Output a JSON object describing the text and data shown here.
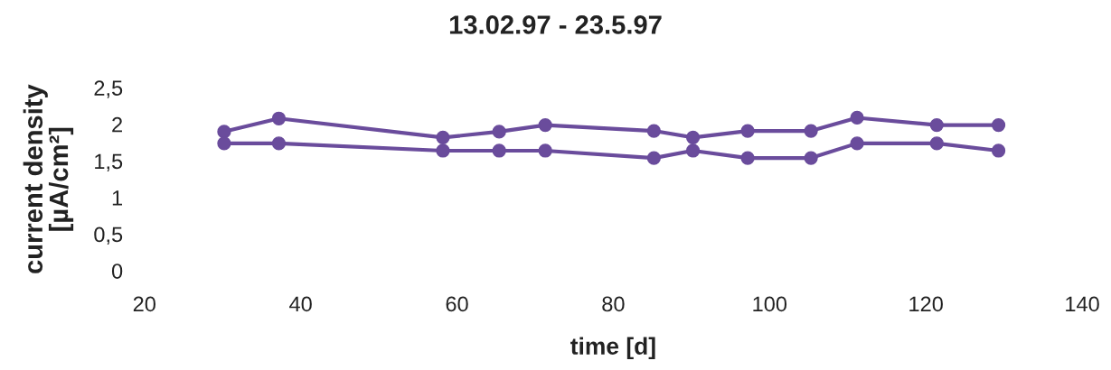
{
  "chart_data": {
    "type": "line",
    "title": "13.02.97 - 23.5.97",
    "xlabel": "time [d]",
    "ylabel": "current density\n[µA/cm²]",
    "x": [
      30.2,
      37.2,
      58.2,
      65.4,
      71.3,
      85.2,
      90.2,
      97.2,
      105.3,
      111.2,
      121.4,
      129.3
    ],
    "series": [
      {
        "color": "#6a4c9c",
        "values": [
          1.9,
          2.08,
          1.82,
          1.9,
          1.99,
          1.91,
          1.82,
          1.91,
          1.91,
          2.09,
          1.99,
          1.99
        ]
      },
      {
        "color": "#6a4c9c",
        "values": [
          1.74,
          1.74,
          1.64,
          1.64,
          1.64,
          1.54,
          1.64,
          1.54,
          1.54,
          1.74,
          1.74,
          1.64
        ]
      }
    ],
    "marker": "circle",
    "line_style": "solid",
    "grid": false,
    "xlim": [
      20,
      140
    ],
    "xticks": [
      20,
      40,
      60,
      80,
      100,
      120,
      140
    ],
    "ylim": [
      0,
      2.5
    ],
    "yticks": [
      0,
      {
        "value": 0.5,
        "label": "0,5"
      },
      1,
      {
        "value": 1.5,
        "label": "1,5"
      },
      2,
      {
        "value": 2.5,
        "label": "2,5"
      }
    ]
  }
}
